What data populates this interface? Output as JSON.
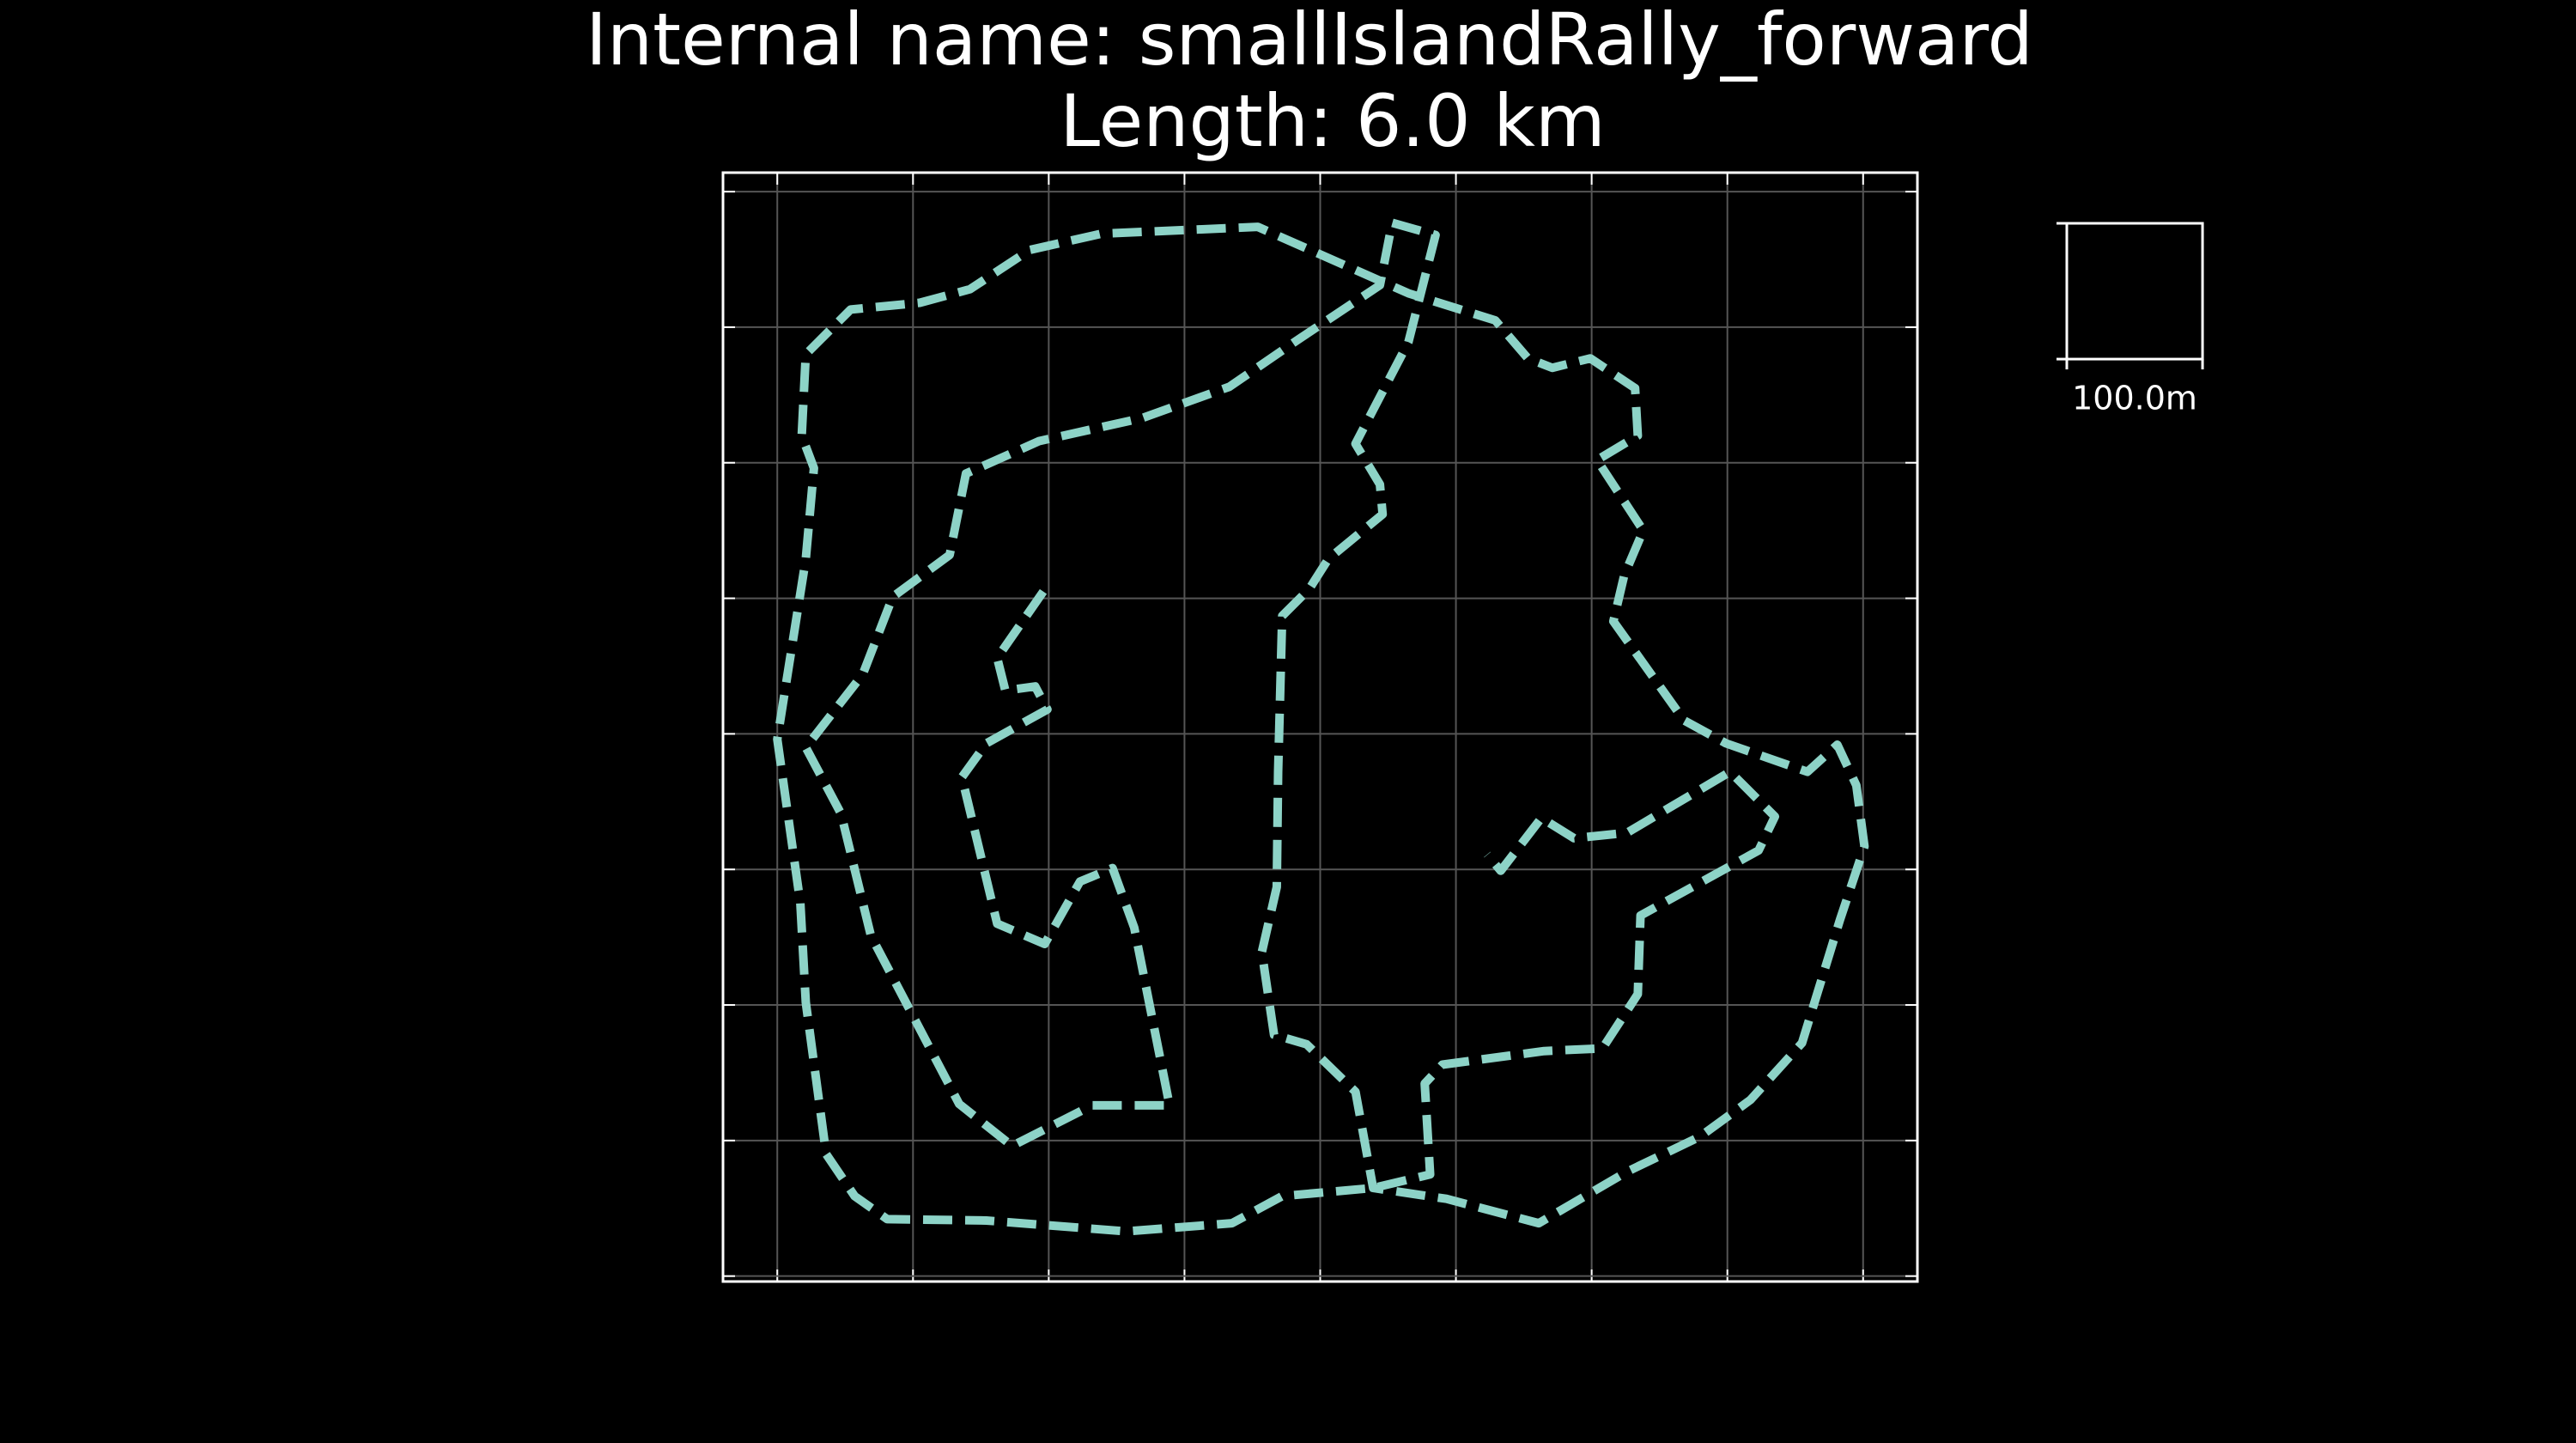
{
  "chart_data": {
    "type": "line",
    "title": "Internal name: smallIslandRally_forward",
    "subtitle": "Length: 6.0 km",
    "x": [
      196,
      162,
      168,
      190,
      199,
      154,
      136,
      162,
      197,
      223,
      247,
      263,
      289,
      232,
      173,
      134,
      69,
      47,
      21,
      63,
      85,
      127,
      139,
      193,
      269,
      333,
      384,
      444,
      453,
      485,
      465,
      426,
      444,
      446,
      406,
      392,
      372,
      369,
      368,
      357,
      366,
      390,
      426,
      439,
      493,
      561,
      626,
      680,
      717,
      755,
      783,
      801,
      795,
      781,
      759,
      699,
      668,
      616,
      624,
      638,
      604,
      634,
      632,
      599,
      571,
      553,
      529,
      465,
      354,
      239,
      186,
      142,
      105,
      54,
      21,
      18,
      27,
      21,
      0,
      17,
      21,
      36,
      57,
      81,
      154,
      257,
      335,
      372,
      439,
      481,
      477,
      490,
      565,
      608,
      634,
      636,
      723,
      735,
      702,
      626,
      587,
      563,
      533,
      523
    ],
    "values": [
      505,
      456,
      432,
      435,
      418,
      393,
      368,
      260,
      245,
      291,
      301,
      257,
      126,
      126,
      96,
      127,
      251,
      341,
      390,
      444,
      501,
      532,
      592,
      616,
      633,
      656,
      691,
      731,
      777,
      768,
      689,
      614,
      584,
      562,
      529,
      507,
      487,
      372,
      287,
      239,
      178,
      171,
      136,
      65,
      57,
      39,
      77,
      103,
      130,
      172,
      263,
      317,
      362,
      392,
      372,
      393,
      410,
      483,
      517,
      550,
      602,
      620,
      655,
      677,
      670,
      677,
      705,
      725,
      774,
      769,
      757,
      728,
      718,
      713,
      680,
      620,
      596,
      529,
      396,
      275,
      202,
      90,
      59,
      42,
      41,
      33,
      39,
      59,
      65,
      75,
      142,
      156,
      166,
      168,
      208,
      266,
      314,
      339,
      372,
      327,
      323,
      338,
      299,
      311
    ],
    "color": "#8dd3c7",
    "xlim": [
      -40,
      840
    ],
    "ylim": [
      -4,
      814
    ],
    "xticks": [
      0,
      100,
      200,
      300,
      400,
      500,
      600,
      700,
      800
    ],
    "yticks": [
      0,
      100,
      200,
      300,
      400,
      500,
      600,
      700,
      800
    ],
    "grid": true,
    "scale_bar": {
      "size": 100,
      "label": "100.0m"
    }
  }
}
